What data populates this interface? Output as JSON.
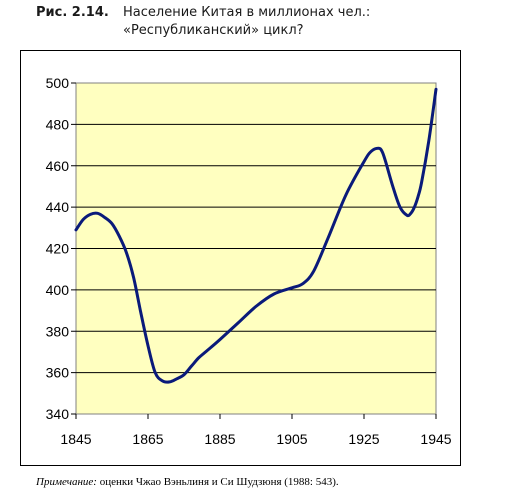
{
  "figure": {
    "label": "Рис. 2.14.",
    "title_line1": "Население Китая в миллионах чел.:",
    "title_line2": "«Республиканский» цикл?"
  },
  "note": {
    "prefix": "Примечание:",
    "text": " оценки Чжао Вэньлиня и Си Шудзюня (1988: 543)."
  },
  "chart_data": {
    "type": "line",
    "xlim": [
      1845,
      1945
    ],
    "ylim": [
      340,
      500
    ],
    "x_ticks": [
      "1845",
      "1865",
      "1885",
      "1905",
      "1925",
      "1945"
    ],
    "y_ticks": [
      "340",
      "360",
      "380",
      "400",
      "420",
      "440",
      "460",
      "480",
      "500"
    ],
    "grid": "horizontal",
    "plot_background": "#ffffc0",
    "line_color": "#0a1a7a",
    "series": [
      {
        "x": [
          1845,
          1847,
          1849,
          1851,
          1853,
          1855,
          1857,
          1859,
          1861,
          1863,
          1865,
          1867,
          1869,
          1871,
          1873,
          1875,
          1877,
          1879,
          1881,
          1885,
          1890,
          1895,
          1900,
          1905,
          1908,
          1911,
          1915,
          1920,
          1925,
          1927,
          1929,
          1930,
          1931,
          1933,
          1935,
          1937,
          1938,
          1939,
          1940,
          1941,
          1943,
          1945
        ],
        "y": [
          429,
          434,
          436.5,
          437,
          435,
          432,
          426,
          418,
          406,
          389,
          373,
          360,
          356,
          355.5,
          357,
          359,
          363,
          367,
          370,
          376,
          384,
          392,
          398,
          401,
          403,
          409,
          425,
          446,
          462,
          467,
          468.5,
          467,
          462,
          450,
          440,
          436,
          437,
          440,
          445,
          452,
          472,
          497
        ]
      }
    ]
  }
}
